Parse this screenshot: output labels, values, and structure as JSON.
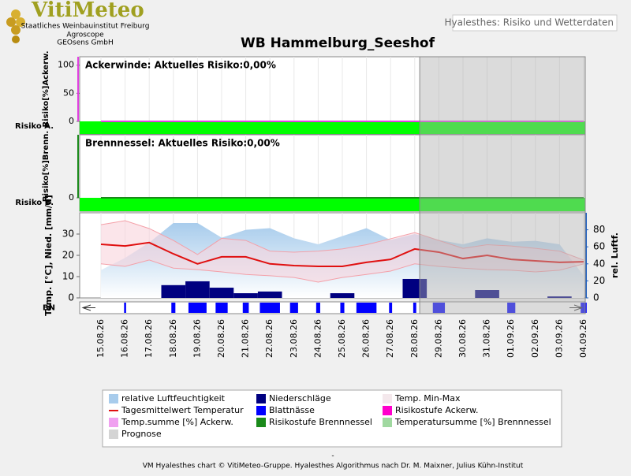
{
  "header": {
    "logo": "VitiMeteo",
    "lines": [
      "Staatliches Weinbauinstitut Freiburg",
      "Agroscope",
      "GEOsens GmbH"
    ],
    "tab": "Hyalesthes: Risiko und Wetterdaten"
  },
  "title": "WB Hammelburg_Seeshof",
  "chart_data": [
    {
      "type": "risk",
      "annotation": "Ackerwinde: Aktuelles Risiko:0,00%",
      "ylabel": "Risiko[%]Ackerw.",
      "strip_label": "Risiko A.",
      "ylim": [
        0,
        115
      ],
      "yticks": [
        0,
        50,
        100
      ],
      "grid": true,
      "strip_color": "#00ff00",
      "series": [
        {
          "color": "#e040e0",
          "values": [
            0,
            0,
            0,
            0,
            0,
            0,
            0,
            0,
            0,
            0,
            0,
            0,
            0,
            0,
            0,
            0,
            0,
            0,
            0,
            0,
            0
          ]
        }
      ]
    },
    {
      "type": "risk",
      "annotation": "Brennnessel: Aktuelles Risiko:0,00%",
      "ylabel": "Risiko[%]Brenn.",
      "strip_label": "Risiko B.",
      "ylim": [
        0,
        113
      ],
      "yticks": [
        0
      ],
      "grid": true,
      "strip_color": "#00ff00",
      "series": [
        {
          "color": "#1a8a1a",
          "values": [
            0,
            0,
            0,
            0,
            0,
            0,
            0,
            0,
            0,
            0,
            0,
            0,
            0,
            0,
            0,
            0,
            0,
            0,
            0,
            0,
            0
          ]
        }
      ]
    },
    {
      "type": "weather",
      "ylabel": "Temp. [°C], Nied. [mm/d]",
      "y2label": "rel. Luftf.",
      "categories": [
        "15.08.26",
        "16.08.26",
        "17.08.26",
        "18.08.26",
        "19.08.26",
        "20.08.26",
        "21.08.26",
        "22.08.26",
        "23.08.26",
        "24.08.26",
        "25.08.26",
        "26.08.26",
        "27.08.26",
        "28.08.26",
        "29.08.26",
        "30.08.26",
        "31.08.26",
        "01.09.26",
        "02.09.26",
        "03.09.26",
        "04.09.26"
      ],
      "forecast_start": "29.08.26",
      "ylim": [
        0,
        40
      ],
      "yticks": [
        0,
        10,
        20,
        30
      ],
      "y2lim": [
        0,
        100
      ],
      "y2ticks": [
        0,
        20,
        40,
        60,
        80
      ],
      "grid": true,
      "series": [
        {
          "kind": "area",
          "axis": "y2",
          "color": "#a8ccec",
          "values": [
            32.6,
            47,
            65,
            88,
            88,
            70.7,
            80,
            82,
            70,
            63,
            72.6,
            82,
            68,
            75,
            68,
            63,
            70,
            66,
            67,
            63,
            26
          ]
        },
        {
          "kind": "band-high",
          "color": "#f4a0a8",
          "values": [
            34.4,
            36.3,
            32.6,
            27,
            20.4,
            28,
            27,
            22,
            21.5,
            22,
            23,
            25,
            27.8,
            30.7,
            27,
            23.3,
            25,
            24.4,
            23.3,
            22,
            17.8
          ]
        },
        {
          "kind": "band-low",
          "color": "#f4a0a8",
          "values": [
            16,
            14.8,
            17.8,
            14,
            13.3,
            12.2,
            11,
            10.4,
            9.6,
            7.4,
            9.6,
            11,
            12.6,
            16,
            14.8,
            14,
            13.3,
            13,
            12.2,
            13,
            16
          ]
        },
        {
          "kind": "line",
          "color": "#e01010",
          "values": [
            25.2,
            24.4,
            26,
            20.7,
            16,
            19.3,
            19.3,
            16,
            15.2,
            14.8,
            14.8,
            16.7,
            18.1,
            23,
            21.5,
            18.5,
            20,
            18.1,
            17.4,
            16.7,
            17
          ]
        },
        {
          "kind": "bar",
          "color": "#000080",
          "values": [
            0,
            0,
            0,
            6,
            7.8,
            4.8,
            2.2,
            3,
            0,
            0,
            2.2,
            0,
            0,
            8.9,
            0,
            0,
            3.7,
            0,
            0,
            0.7,
            0
          ]
        }
      ]
    },
    {
      "type": "bn",
      "label": "BN",
      "color": "#0000ff",
      "vlim": [
        0,
        24
      ],
      "values": [
        0,
        2,
        0,
        4,
        18,
        12,
        6,
        20,
        8,
        4,
        4,
        20,
        3,
        3,
        12,
        0,
        0,
        8,
        0,
        0,
        6
      ]
    }
  ],
  "legend": [
    {
      "name": "relative Luftfeuchtigkeit",
      "color": "#a8ccec",
      "symbol": "box"
    },
    {
      "name": "Niederschläge",
      "color": "#000080",
      "symbol": "box"
    },
    {
      "name": "Temp. Min-Max",
      "color": "#f4e8ec",
      "symbol": "box"
    },
    {
      "name": "Tagesmittelwert Temperatur",
      "color": "#e01010",
      "symbol": "line"
    },
    {
      "name": "Blattnässe",
      "color": "#0000ff",
      "symbol": "box"
    },
    {
      "name": "Risikostufe Ackerw.",
      "color": "#ff00cc",
      "symbol": "box"
    },
    {
      "name": "Temp.summe [%] Ackerw.",
      "color": "#f0a0f0",
      "symbol": "box"
    },
    {
      "name": "Risikostufe Brennnessel",
      "color": "#1a8a1a",
      "symbol": "box"
    },
    {
      "name": "Temperatursumme [%] Brennnessel",
      "color": "#a0d8a0",
      "symbol": "box"
    },
    {
      "name": "Prognose",
      "color": "#d4d4d4",
      "symbol": "box"
    }
  ],
  "footer_dash": "-",
  "footer": "VM Hyalesthes chart © VitiMeteo-Gruppe. Hyalesthes Algorithmus nach Dr. M. Maixner, Julius Kühn-Institut"
}
